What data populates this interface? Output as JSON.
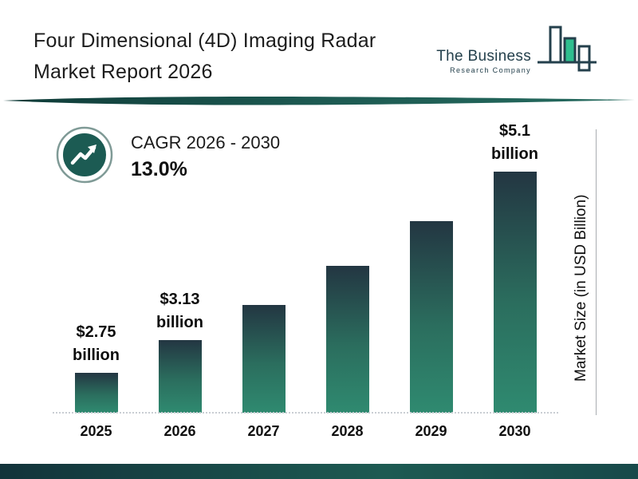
{
  "header": {
    "title_line1": "Four Dimensional (4D) Imaging Radar",
    "title_line2": "Market Report 2026",
    "logo": {
      "line1": "The Business",
      "line2": "Research Company"
    }
  },
  "cagr": {
    "label": "CAGR 2026 - 2030",
    "value": "13.0%"
  },
  "chart_data": {
    "type": "bar",
    "title": "Four Dimensional (4D) Imaging Radar Market Report 2026",
    "categories": [
      "2025",
      "2026",
      "2027",
      "2028",
      "2029",
      "2030"
    ],
    "values": [
      2.75,
      3.13,
      3.54,
      4.0,
      4.52,
      5.1
    ],
    "bar_labels": [
      "$2.75 billion",
      "$3.13 billion",
      "",
      "",
      "",
      "$5.1 billion"
    ],
    "xlabel": "",
    "ylabel": "Market Size (in USD Billion)",
    "ylim": [
      2.28,
      5.9
    ],
    "grid": false,
    "legend": "none",
    "colors": {
      "bar_top": "#233642",
      "bar_bottom": "#2f8a70",
      "accent_teal": "#1d5a52",
      "logo_green": "#2fbf8f"
    }
  }
}
